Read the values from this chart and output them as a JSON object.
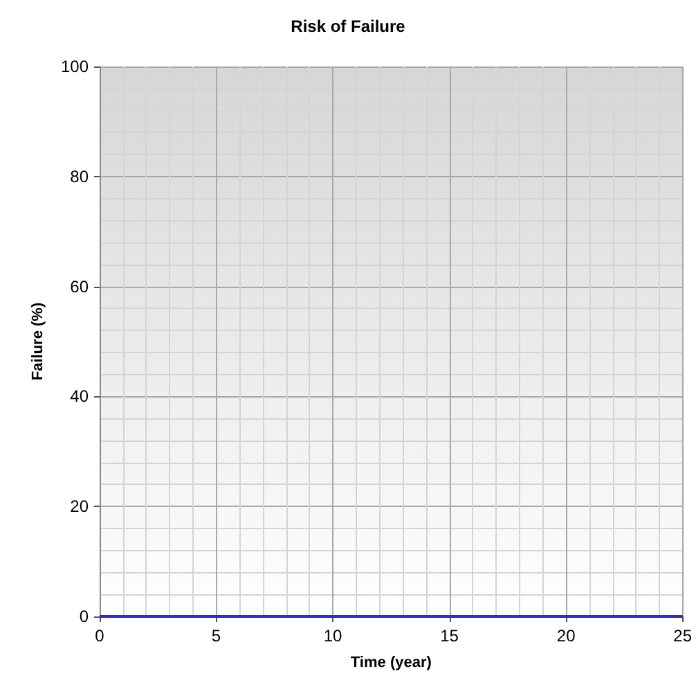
{
  "chart_data": {
    "type": "line",
    "title": "Risk of Failure",
    "xlabel": "Time (year)",
    "ylabel": "Failure (%)",
    "x": [
      0,
      25
    ],
    "series": [
      {
        "color": "#2a2ad0",
        "values": [
          0,
          0
        ]
      }
    ],
    "xlim": [
      0,
      25
    ],
    "xticks": [
      0,
      5,
      10,
      15,
      20,
      25
    ],
    "ylim": [
      0,
      100
    ],
    "yticks": [
      0,
      20,
      40,
      60,
      80,
      100
    ],
    "grid": true,
    "marker": "none",
    "line_style": "solid"
  }
}
